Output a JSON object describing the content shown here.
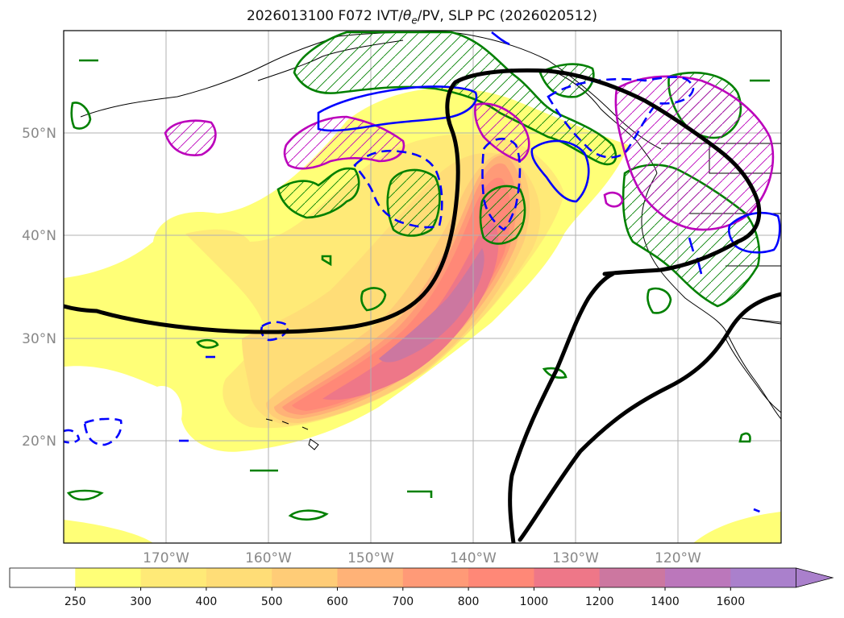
{
  "title": {
    "prefix": "2026013100 F072 IVT/",
    "theta": "θ",
    "theta_sub": "e",
    "suffix": "/PV, SLP PC (2026020512)"
  },
  "map": {
    "lat_labels": [
      "50°N",
      "40°N",
      "30°N",
      "20°N"
    ],
    "lon_labels": [
      "170°W",
      "160°W",
      "150°W",
      "140°W",
      "130°W",
      "120°W"
    ]
  },
  "colorbar": {
    "ticks": [
      "250",
      "300",
      "400",
      "500",
      "600",
      "700",
      "800",
      "1000",
      "1200",
      "1400",
      "1600"
    ],
    "colors": [
      "#ffffff",
      "#ffff77",
      "#ffea77",
      "#ffdd77",
      "#ffcc77",
      "#ffb277",
      "#ff9a77",
      "#ff8877",
      "#ee7788",
      "#cc77a0",
      "#bb77bb",
      "#aa80cc"
    ],
    "arrow_color": "#aa80cc"
  },
  "colors": {
    "slp_contour": "#000000",
    "pv_contour": "#008000",
    "theta_positive": "#0000ff",
    "theta_pc": "#bb00bb"
  }
}
